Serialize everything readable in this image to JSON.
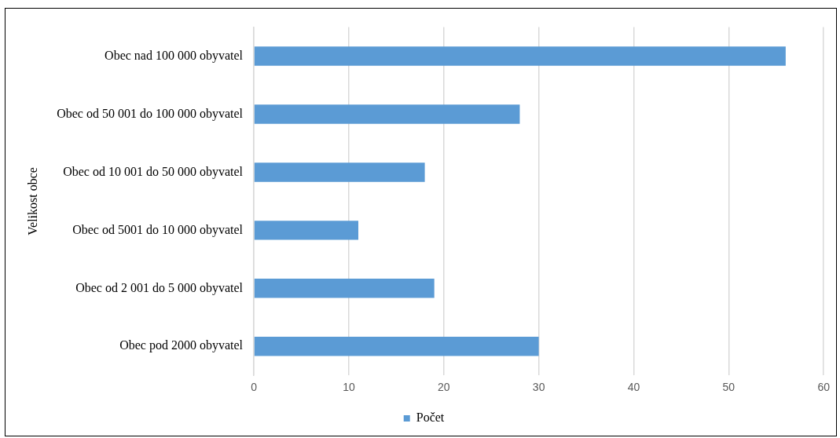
{
  "chart_data": {
    "type": "bar",
    "orientation": "horizontal",
    "ylabel": "Velikost obce",
    "categories": [
      "Obec nad 100 000 obyvatel",
      "Obec od 50 001 do 100 000 obyvatel",
      "Obec od 10 001 do 50 000 obyvatel",
      "Obec od 5001 do 10 000 obyvatel",
      "Obec od 2 001 do 5 000 obyvatel",
      "Obec pod 2000 obyvatel"
    ],
    "series": [
      {
        "name": "Počet",
        "color": "#5b9bd5",
        "values": [
          56,
          28,
          18,
          11,
          19,
          30
        ]
      }
    ],
    "xlim": [
      0,
      60
    ],
    "xticks": [
      0,
      10,
      20,
      30,
      40,
      50,
      60
    ],
    "grid": "x",
    "legend": "bottom"
  }
}
